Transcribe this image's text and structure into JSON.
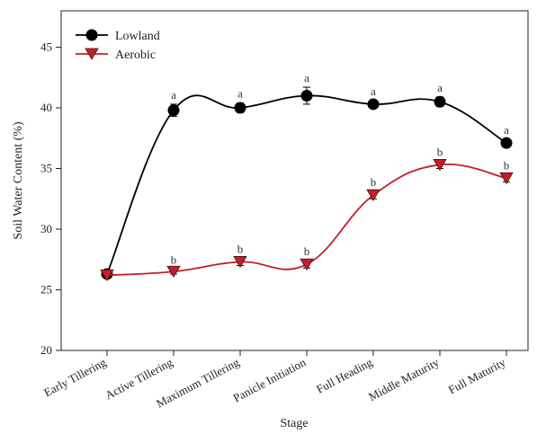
{
  "chart_data": {
    "type": "line",
    "title": "",
    "xlabel": "Stage",
    "ylabel": "Soil Water Content (%)",
    "ylim": [
      20,
      48
    ],
    "yticks": [
      20,
      25,
      30,
      35,
      40,
      45
    ],
    "grid": false,
    "legend_position": "top-left",
    "categories": [
      "Early Tillering",
      "Active Tillering",
      "Maximum Tillering",
      "Panicle Initiation",
      "Full Heading",
      "Middle Maturity",
      "Full Maturity"
    ],
    "series": [
      {
        "name": "Lowland",
        "color": "#000000",
        "marker": "circle",
        "values": [
          26.3,
          39.8,
          40.0,
          41.0,
          40.3,
          40.5,
          37.1
        ],
        "errors": [
          0.2,
          0.5,
          0.4,
          0.7,
          0.3,
          0.4,
          0.3
        ],
        "labels": [
          "",
          "a",
          "a",
          "a",
          "a",
          "a",
          "a"
        ]
      },
      {
        "name": "Aerobic",
        "color": "#c0202a",
        "marker": "triangle-down",
        "values": [
          26.2,
          26.5,
          27.3,
          27.1,
          32.8,
          35.3,
          34.2
        ],
        "errors": [
          0.2,
          0.2,
          0.3,
          0.3,
          0.3,
          0.3,
          0.3
        ],
        "labels": [
          "",
          "b",
          "b",
          "b",
          "b",
          "b",
          "b"
        ]
      }
    ]
  }
}
